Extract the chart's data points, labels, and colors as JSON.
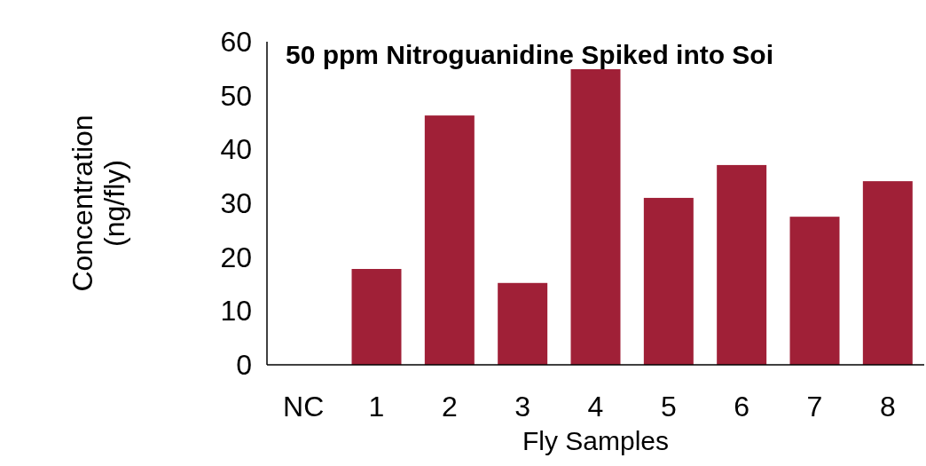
{
  "chart_data": {
    "type": "bar",
    "title": "50 ppm Nitroguanidine Spiked into Soi",
    "xlabel": "Fly Samples",
    "ylabel": "Concentration\n(ng/fly)",
    "categories": [
      "NC",
      "1",
      "2",
      "3",
      "4",
      "5",
      "6",
      "7",
      "8"
    ],
    "values": [
      0,
      17.8,
      46.3,
      15.2,
      54.9,
      31.0,
      37.1,
      27.5,
      34.1
    ],
    "color": "#a02037",
    "ylim": [
      0,
      60
    ],
    "yticks": [
      0,
      10,
      20,
      30,
      40,
      50,
      60
    ],
    "grid": false
  }
}
